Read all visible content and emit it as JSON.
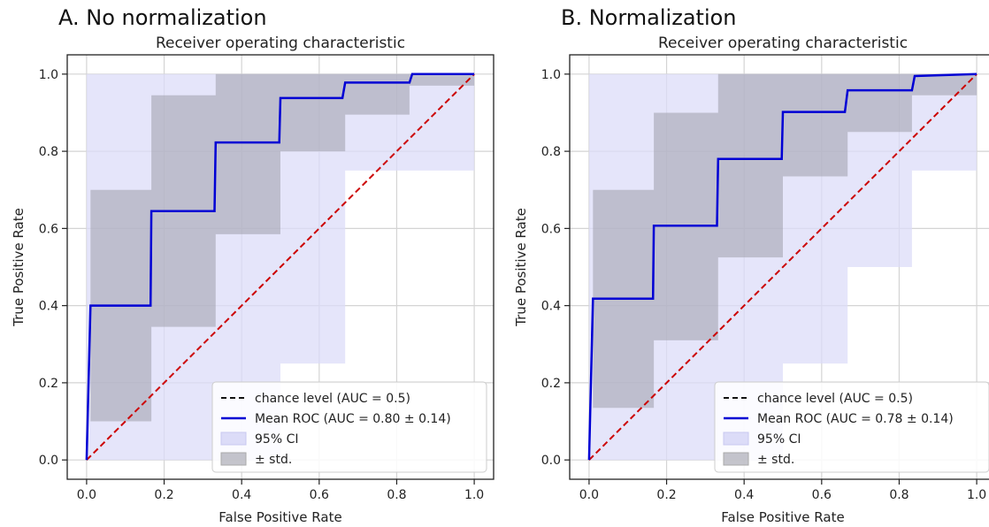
{
  "chart_data": [
    {
      "type": "line",
      "panel_label": "A. No normalization",
      "title": "Receiver operating characteristic",
      "xlabel": "False Positive Rate",
      "ylabel": "True Positive Rate",
      "xlim": [
        -0.05,
        1.05
      ],
      "ylim": [
        -0.05,
        1.05
      ],
      "xticks": [
        "0.0",
        "0.2",
        "0.4",
        "0.6",
        "0.8",
        "1.0"
      ],
      "yticks": [
        "0.0",
        "0.2",
        "0.4",
        "0.6",
        "0.8",
        "1.0"
      ],
      "grid": true,
      "legend_position": "lower-right",
      "legend": [
        "chance level (AUC = 0.5)",
        "Mean ROC (AUC = 0.80 ± 0.14)",
        "95% CI",
        "± std."
      ],
      "colors": {
        "mean": "#0000d4",
        "chance": "#cc0000",
        "ci": "#dcdcf8",
        "std": "#9e9eaa"
      },
      "series": [
        {
          "name": "chance level (AUC = 0.5)",
          "x": [
            0,
            1
          ],
          "y": [
            0,
            1
          ]
        },
        {
          "name": "Mean ROC (AUC = 0.80 ± 0.14)",
          "x": [
            0,
            0.01,
            0.165,
            0.167,
            0.33,
            0.333,
            0.497,
            0.5,
            0.66,
            0.667,
            0.833,
            0.84,
            1.0
          ],
          "y": [
            0,
            0.4,
            0.4,
            0.645,
            0.645,
            0.823,
            0.823,
            0.938,
            0.938,
            0.978,
            0.978,
            1.0,
            1.0
          ]
        },
        {
          "name": "95% CI",
          "x": [
            0,
            0.01,
            0.167,
            0.333,
            0.5,
            0.667,
            0.833,
            1.0
          ],
          "upper": [
            1.0,
            1.0,
            1.0,
            1.0,
            1.0,
            1.0,
            1.0,
            1.0
          ],
          "lower": [
            0,
            0.0,
            0.0,
            0.0,
            0.25,
            0.75,
            0.75,
            1.0
          ]
        },
        {
          "name": "± std.",
          "x": [
            0,
            0.01,
            0.167,
            0.333,
            0.5,
            0.667,
            0.833,
            1.0
          ],
          "upper": [
            0,
            0.7,
            0.945,
            1.0,
            1.0,
            1.0,
            1.0,
            1.0
          ],
          "lower": [
            0,
            0.1,
            0.345,
            0.585,
            0.8,
            0.895,
            0.97,
            1.0
          ]
        }
      ]
    },
    {
      "type": "line",
      "panel_label": "B. Normalization",
      "title": "Receiver operating characteristic",
      "xlabel": "False Positive Rate",
      "ylabel": "True Positive Rate",
      "xlim": [
        -0.05,
        1.05
      ],
      "ylim": [
        -0.05,
        1.05
      ],
      "xticks": [
        "0.0",
        "0.2",
        "0.4",
        "0.6",
        "0.8",
        "1.0"
      ],
      "yticks": [
        "0.0",
        "0.2",
        "0.4",
        "0.6",
        "0.8",
        "1.0"
      ],
      "grid": true,
      "legend_position": "lower-right",
      "legend": [
        "chance level (AUC = 0.5)",
        "Mean ROC (AUC = 0.78 ± 0.14)",
        "95% CI",
        "± std."
      ],
      "colors": {
        "mean": "#0000d4",
        "chance": "#cc0000",
        "ci": "#dcdcf8",
        "std": "#9e9eaa"
      },
      "series": [
        {
          "name": "chance level (AUC = 0.5)",
          "x": [
            0,
            1
          ],
          "y": [
            0,
            1
          ]
        },
        {
          "name": "Mean ROC (AUC = 0.78 ± 0.14)",
          "x": [
            0,
            0.01,
            0.165,
            0.167,
            0.33,
            0.333,
            0.497,
            0.5,
            0.66,
            0.667,
            0.833,
            0.84,
            1.0
          ],
          "y": [
            0,
            0.418,
            0.418,
            0.607,
            0.607,
            0.78,
            0.78,
            0.902,
            0.902,
            0.958,
            0.958,
            0.995,
            1.0
          ]
        },
        {
          "name": "95% CI",
          "x": [
            0,
            0.01,
            0.167,
            0.333,
            0.5,
            0.667,
            0.833,
            1.0
          ],
          "upper": [
            1.0,
            1.0,
            1.0,
            1.0,
            1.0,
            1.0,
            1.0,
            1.0
          ],
          "lower": [
            0,
            0.0,
            0.0,
            0.0,
            0.25,
            0.5,
            0.75,
            1.0
          ]
        },
        {
          "name": "± std.",
          "x": [
            0,
            0.01,
            0.167,
            0.333,
            0.5,
            0.667,
            0.833,
            1.0
          ],
          "upper": [
            0,
            0.7,
            0.9,
            1.0,
            1.0,
            1.0,
            1.0,
            1.0
          ],
          "lower": [
            0,
            0.135,
            0.31,
            0.525,
            0.735,
            0.85,
            0.945,
            1.0
          ]
        }
      ]
    }
  ]
}
